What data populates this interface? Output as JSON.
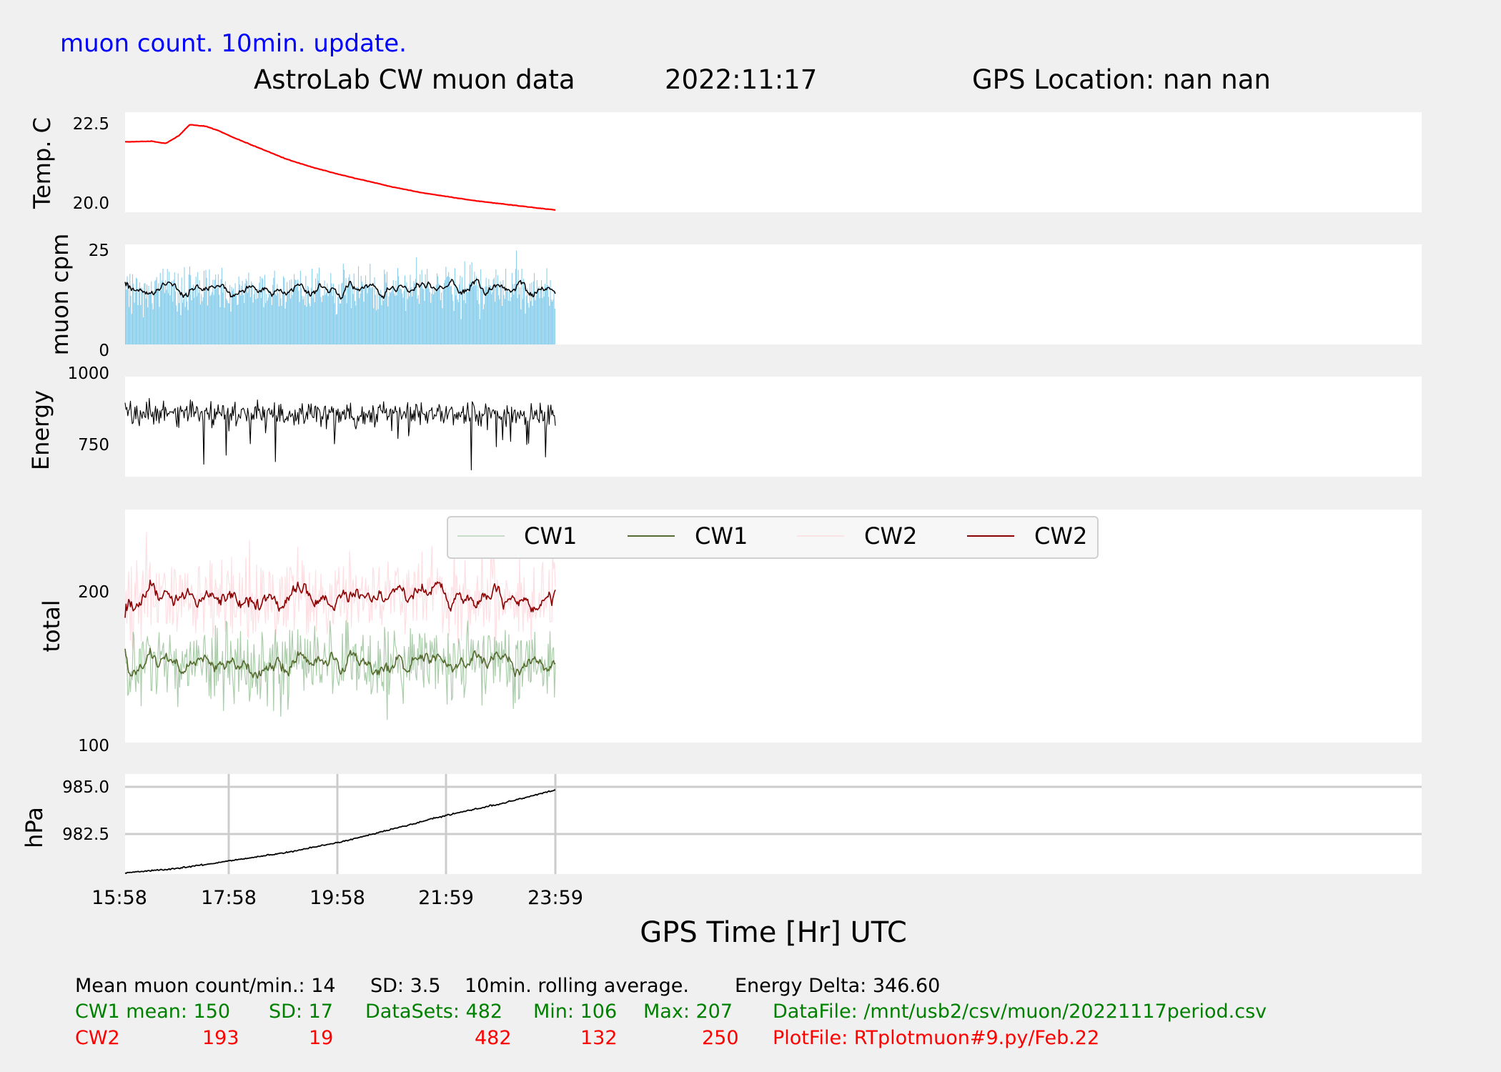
{
  "header": {
    "update_note": "muon count.  10min. update.",
    "title_left": "AstroLab CW muon data",
    "title_date": "2022:11:17",
    "title_gps": "GPS Location: nan   nan"
  },
  "colors": {
    "background": "#f0f0f0",
    "panel": "#ffffff",
    "note": "#0000ff",
    "temp_line": "#ff0000",
    "muon_bars": "#87ceeb",
    "muon_avg": "#000000",
    "energy_line": "#000000",
    "cw1_raw": "#8fbc8f",
    "cw1_avg": "#556b2f",
    "cw2_raw": "#ffb6c1",
    "cw2_avg": "#8b0000",
    "pressure_line": "#000000",
    "grid": "#cccccc",
    "stats_black": "#000000",
    "stats_green": "#008000",
    "stats_red": "#ff0000"
  },
  "chart_data": [
    {
      "type": "line",
      "ylabel": "Temp. C",
      "yticks": [
        20.0,
        22.5
      ],
      "ytick_labels": [
        "20.0",
        "22.5"
      ],
      "ylim": [
        19.95,
        23.15
      ],
      "grid": false,
      "series": [
        {
          "x": [
            0,
            0.5,
            0.75,
            1.0,
            1.2,
            1.5,
            1.75,
            2.0,
            2.5,
            3.0,
            3.5,
            4.0,
            4.5,
            5.0,
            5.5,
            6.0,
            6.5,
            7.0,
            7.5,
            8.0
          ],
          "y": [
            22.2,
            22.22,
            22.15,
            22.4,
            22.75,
            22.7,
            22.55,
            22.35,
            22.0,
            21.65,
            21.38,
            21.15,
            20.95,
            20.75,
            20.58,
            20.45,
            20.32,
            20.22,
            20.12,
            20.02
          ]
        }
      ]
    },
    {
      "type": "bar",
      "ylabel": "muon cpm",
      "yticks": [
        0,
        25
      ],
      "ytick_labels": [
        "0",
        "25"
      ],
      "ylim": [
        0,
        25
      ],
      "grid": false,
      "series": [
        {
          "kind": "bars",
          "count": 482,
          "mean": 14,
          "sd": 3.5
        },
        {
          "kind": "rolling-average",
          "window": "10min."
        }
      ]
    },
    {
      "type": "line",
      "ylabel": "Energy",
      "yticks": [
        750,
        1000
      ],
      "ytick_labels": [
        "750",
        "1000"
      ],
      "ylim": [
        690,
        1000
      ],
      "grid": false,
      "series": [
        {
          "count": 482,
          "typical": 885,
          "min": 700,
          "max": 960
        }
      ]
    },
    {
      "type": "line",
      "ylabel": "total",
      "yticks": [
        100,
        200
      ],
      "ytick_labels": [
        "100",
        "200"
      ],
      "ylim": [
        100,
        250
      ],
      "grid": false,
      "legend_position": "upper center",
      "series": [
        {
          "name": "CW1",
          "kind": "raw",
          "mean": 150,
          "sd": 17,
          "min": 106,
          "max": 207
        },
        {
          "name": "CW1",
          "kind": "rolling-average",
          "mean": 150
        },
        {
          "name": "CW2",
          "kind": "raw",
          "mean": 193,
          "sd": 19,
          "min": 132,
          "max": 250
        },
        {
          "name": "CW2",
          "kind": "rolling-average",
          "mean": 193
        }
      ]
    },
    {
      "type": "line",
      "ylabel": "hPa",
      "yticks": [
        982.5,
        985.0
      ],
      "ytick_labels": [
        "982.5",
        "985.0"
      ],
      "ylim": [
        981.3,
        985.7
      ],
      "grid": true,
      "xlabel": "GPS Time  [Hr] UTC",
      "x_ticks": [
        "15:58",
        "17:58",
        "19:58",
        "21:59",
        "23:59"
      ],
      "series": [
        {
          "x": [
            0,
            1,
            2,
            3,
            4,
            5,
            6,
            7,
            8
          ],
          "y": [
            981.35,
            981.55,
            981.9,
            982.25,
            982.7,
            983.3,
            983.9,
            984.4,
            985.0
          ]
        }
      ]
    }
  ],
  "stats": {
    "line1": {
      "mean": "Mean muon count/min.: 14",
      "sd": "SD: 3.5",
      "rolling": "10min. rolling average.",
      "energy_delta": "Energy Delta:  346.60"
    },
    "cw1": {
      "mean": "CW1 mean: 150",
      "sd": "SD: 17",
      "datasets": "DataSets: 482",
      "min": "Min: 106",
      "max": "Max: 207",
      "file": "DataFile: /mnt/usb2/csv/muon/20221117period.csv"
    },
    "cw2": {
      "name": "CW2",
      "mean": "193",
      "sd": "19",
      "datasets": "482",
      "min": "132",
      "max": "250",
      "file": "PlotFile: RTplotmuon#9.py/Feb.22"
    }
  }
}
